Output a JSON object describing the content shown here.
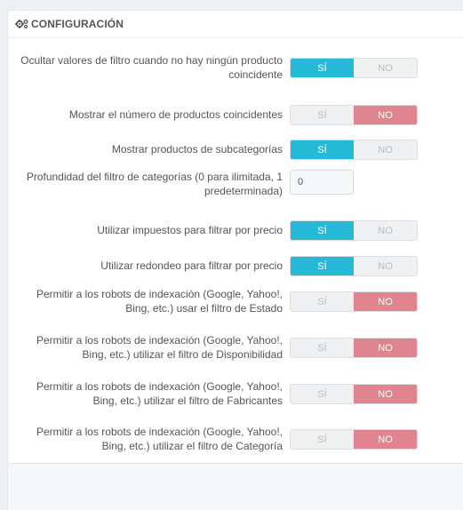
{
  "panel": {
    "title": "Configuración",
    "title_icon": "gears-icon"
  },
  "labels": {
    "yes": "Sí",
    "no": "No"
  },
  "settings": [
    {
      "label": "Ocultar valores de filtro cuando no hay ningún producto coincidente",
      "type": "switch",
      "value": "yes"
    },
    {
      "label": "Mostrar el número de productos coincidentes",
      "type": "switch",
      "value": "no"
    },
    {
      "label": "Mostrar productos de subcategorías",
      "type": "switch",
      "value": "yes"
    },
    {
      "label": "Profundidad del filtro de categorías (0 para ilimitada, 1 predeterminada)",
      "type": "text",
      "value": "0"
    },
    {
      "label": "Utilizar impuestos para filtrar por precio",
      "type": "switch",
      "value": "yes"
    },
    {
      "label": "Utilizar redondeo para filtrar por precio",
      "type": "switch",
      "value": "yes"
    },
    {
      "label": "Permitir a los robots de indexación (Google, Yahoo!, Bing, etc.) usar el filtro de Estado",
      "type": "switch",
      "value": "no"
    },
    {
      "label": "Permitir a los robots de indexación (Google, Yahoo!, Bing, etc.) utilizar el filtro de Disponibilidad",
      "type": "switch",
      "value": "no"
    },
    {
      "label": "Permitir a los robots de indexación (Google, Yahoo!, Bing, etc.) utilizar el filtro de Fabricantes",
      "type": "switch",
      "value": "no"
    },
    {
      "label": "Permitir a los robots de indexación (Google, Yahoo!, Bing, etc.) utilizar el filtro de Categoría",
      "type": "switch",
      "value": "no"
    }
  ],
  "colors": {
    "yes_active": "#25b9d7",
    "no_active": "#e08590",
    "inactive": "#eef0f2"
  }
}
